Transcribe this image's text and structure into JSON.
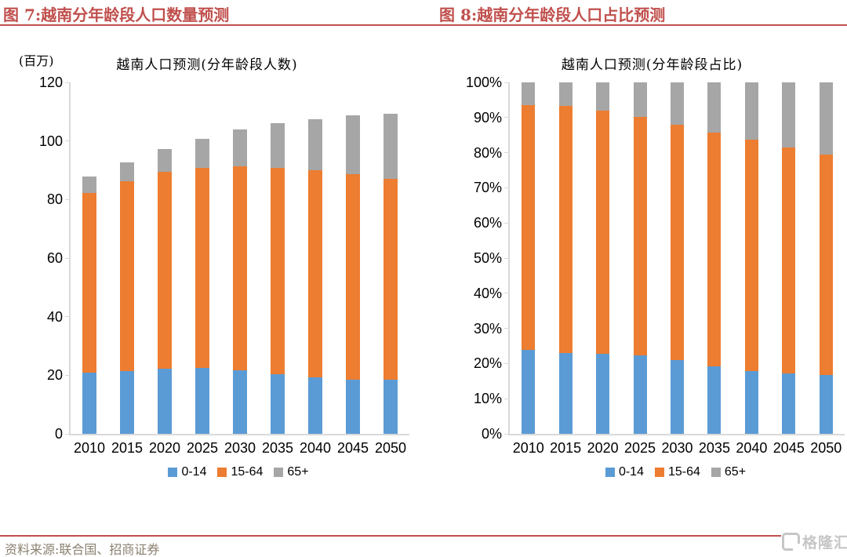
{
  "figures": [
    {
      "title": "图 7:越南分年龄段人口数量预测"
    },
    {
      "title": "图 8:越南分年龄段人口占比预测"
    }
  ],
  "footer": {
    "source_label": "资料来源:联合国、招商证券",
    "logo_text": "格隆汇"
  },
  "colors": {
    "accent": "#C0504D",
    "axis": "#D9D9D9",
    "footer_text": "#8B8170",
    "logo": "#C6C6C6",
    "bar_blue": "#5B9BD5",
    "bar_orange": "#ED7D31",
    "bar_gray": "#A6A6A6"
  },
  "chart_data": [
    {
      "type": "bar",
      "stacked": true,
      "title": "越南人口预测(分年龄段人数)",
      "unit_label": "(百万)",
      "xlabel": "",
      "ylabel": "百万",
      "categories": [
        "2010",
        "2015",
        "2020",
        "2025",
        "2030",
        "2035",
        "2040",
        "2045",
        "2050"
      ],
      "series": [
        {
          "name": "0-14",
          "color": "#5B9BD5",
          "values": [
            20.9,
            21.3,
            22.2,
            22.5,
            21.7,
            20.3,
            19.2,
            18.6,
            18.4
          ]
        },
        {
          "name": "15-64",
          "color": "#ED7D31",
          "values": [
            61.3,
            65.0,
            67.2,
            68.4,
            69.7,
            70.6,
            70.7,
            70.0,
            68.6
          ]
        },
        {
          "name": "65+",
          "color": "#A6A6A6",
          "values": [
            5.7,
            6.3,
            7.9,
            9.8,
            12.6,
            15.2,
            17.6,
            20.1,
            22.4
          ]
        }
      ],
      "totals": [
        87.9,
        92.6,
        97.3,
        100.7,
        104.0,
        106.1,
        107.5,
        108.7,
        109.4
      ],
      "ylim": [
        0,
        120
      ],
      "ytick_step": 20,
      "ytick_suffix": "",
      "grid": false,
      "legend_position": "bottom"
    },
    {
      "type": "bar",
      "stacked": true,
      "percent": true,
      "title": "越南人口预测(分年龄段占比)",
      "unit_label": "",
      "xlabel": "",
      "ylabel": "%",
      "categories": [
        "2010",
        "2015",
        "2020",
        "2025",
        "2030",
        "2035",
        "2040",
        "2045",
        "2050"
      ],
      "series": [
        {
          "name": "0-14",
          "color": "#5B9BD5",
          "values": [
            23.8,
            23.0,
            22.8,
            22.3,
            20.9,
            19.1,
            17.9,
            17.1,
            16.8
          ]
        },
        {
          "name": "15-64",
          "color": "#ED7D31",
          "values": [
            69.7,
            70.2,
            69.1,
            67.9,
            67.0,
            66.6,
            65.7,
            64.4,
            62.7
          ]
        },
        {
          "name": "65+",
          "color": "#A6A6A6",
          "values": [
            6.5,
            6.8,
            8.1,
            9.8,
            12.1,
            14.3,
            16.4,
            18.5,
            20.5
          ]
        }
      ],
      "ylim": [
        0,
        100
      ],
      "ytick_step": 10,
      "ytick_suffix": "%",
      "grid": false,
      "legend_position": "bottom"
    }
  ]
}
